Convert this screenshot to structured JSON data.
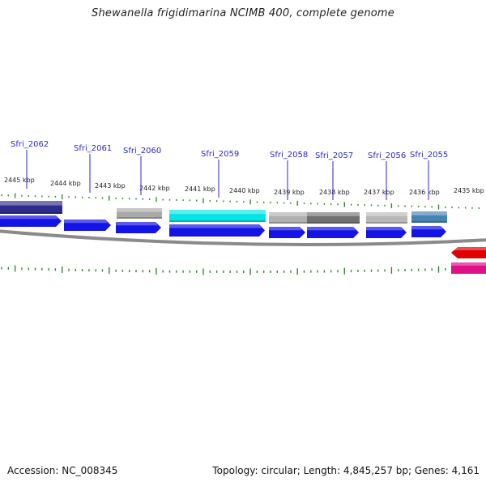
{
  "title": "Shewanella frigidimarina NCIMB 400, complete genome",
  "footer": {
    "accession_label": "Accession: NC_008345",
    "summary_label": "Topology: circular; Length: 4,845,257 bp; Genes: 4,161"
  },
  "colors": {
    "cds_forward": "#1414e6",
    "backbone": "#8a8a8a",
    "tick": "#2e8b2e",
    "label": "#2a2acc",
    "rna_red": "#e00000",
    "rna_pink": "#e0108a"
  },
  "kbp_ticks": [
    "2445 kbp",
    "2444 kbp",
    "2443 kbp",
    "2442 kbp",
    "2441 kbp",
    "2440 kbp",
    "2439 kbp",
    "2438 kbp",
    "2437 kbp",
    "2436 kbp",
    "2435 kbp"
  ],
  "genes": [
    {
      "label": "Sfri_2062",
      "color": "#2c2c8c"
    },
    {
      "label": "Sfri_2061",
      "color": "#ffffff"
    },
    {
      "label": "Sfri_2060",
      "color": "#a9a9a9"
    },
    {
      "label": "Sfri_2059",
      "color": "#00e5e5"
    },
    {
      "label": "Sfri_2058",
      "color": "#b0b0b0"
    },
    {
      "label": "Sfri_2057",
      "color": "#707070"
    },
    {
      "label": "Sfri_2056",
      "color": "#b8b8b8"
    },
    {
      "label": "Sfri_2055",
      "color": "#4682b4"
    }
  ]
}
